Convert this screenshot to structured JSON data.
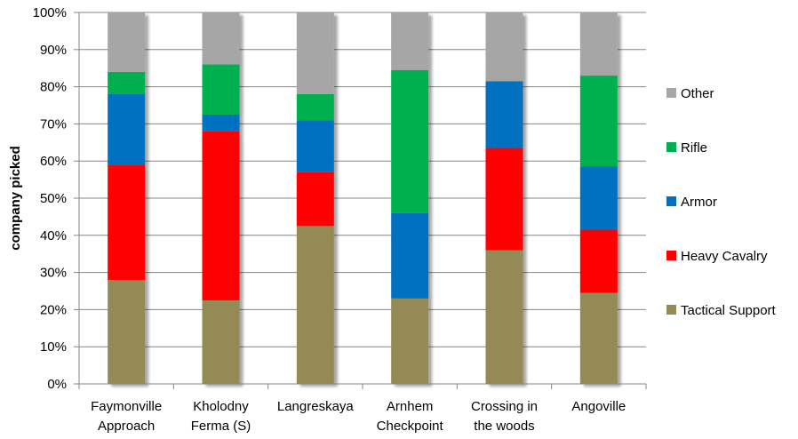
{
  "chart_data": {
    "type": "bar",
    "stacked": true,
    "percent": true,
    "ylabel": "company picked",
    "xlabel": "",
    "ylim": [
      0,
      100
    ],
    "yticks": [
      "0%",
      "10%",
      "20%",
      "30%",
      "40%",
      "50%",
      "60%",
      "70%",
      "80%",
      "90%",
      "100%"
    ],
    "grid": true,
    "legend_position": "right",
    "categories": [
      [
        "Faymonville",
        "Approach"
      ],
      [
        "Kholodny",
        "Ferma (S)"
      ],
      [
        "Langreskaya"
      ],
      [
        "Arnhem",
        "Checkpoint"
      ],
      [
        "Crossing in",
        "the woods"
      ],
      [
        "Angoville"
      ]
    ],
    "series": [
      {
        "name": "Tactical Support",
        "color": "#948A54",
        "values": [
          28,
          22.5,
          42.5,
          23,
          36,
          24.5
        ]
      },
      {
        "name": "Heavy Cavalry",
        "color": "#FF0000",
        "values": [
          31,
          45.5,
          14.5,
          0,
          27.5,
          17
        ]
      },
      {
        "name": "Armor",
        "color": "#0070C0",
        "values": [
          19,
          4.5,
          14,
          23,
          18,
          17
        ]
      },
      {
        "name": "Rifle",
        "color": "#00B050",
        "values": [
          6,
          13.5,
          7,
          38.5,
          0,
          24.5
        ]
      },
      {
        "name": "Other",
        "color": "#A6A6A6",
        "values": [
          16,
          14,
          22,
          15.5,
          18.5,
          17
        ]
      }
    ]
  }
}
